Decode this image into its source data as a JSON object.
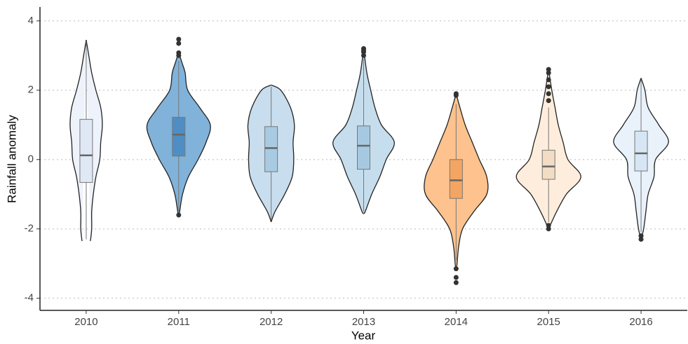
{
  "chart_data": {
    "type": "violin",
    "x_label": "Year",
    "y_label": "Rainfall anomaly",
    "categories": [
      "2010",
      "2011",
      "2012",
      "2013",
      "2014",
      "2015",
      "2016"
    ],
    "ylim": [
      -4.35,
      4.4
    ],
    "yticks": [
      -4,
      -2,
      0,
      2,
      4
    ],
    "grid": true,
    "groups": [
      {
        "color": "#eef3fb",
        "box_color": "#dfe8f4",
        "violin_y": [
          3.45,
          3,
          2.5,
          2,
          1.5,
          1,
          0.5,
          0,
          -0.5,
          -1,
          -1.5,
          -2,
          -2.35
        ],
        "violin_width": [
          0,
          0.08,
          0.17,
          0.3,
          0.45,
          0.5,
          0.45,
          0.42,
          0.3,
          0.22,
          0.17,
          0.17,
          0.13
        ],
        "q1": -0.66,
        "median": 0.12,
        "q3": 1.16,
        "whisker_low": -2.3,
        "whisker_high": 3.4,
        "outliers": []
      },
      {
        "color": "#80b2da",
        "box_color": "#4e8ec4",
        "violin_y": [
          3.1,
          2.8,
          2.5,
          2,
          1.5,
          1,
          0.5,
          0,
          -0.5,
          -1,
          -1.5,
          -1.6
        ],
        "violin_width": [
          0,
          0.1,
          0.2,
          0.28,
          0.65,
          0.98,
          0.85,
          0.6,
          0.3,
          0.12,
          0.03,
          0
        ],
        "q1": 0.1,
        "median": 0.72,
        "q3": 1.22,
        "whisker_low": -1.5,
        "whisker_high": 2.85,
        "outliers": [
          3.47,
          3.35,
          3.08,
          3.0,
          -1.6
        ]
      },
      {
        "color": "#c8ddee",
        "box_color": "#a9cbe2",
        "violin_y": [
          2.15,
          2,
          1.5,
          1,
          0.5,
          0,
          -0.5,
          -1,
          -1.5,
          -1.8
        ],
        "violin_width": [
          0,
          0.3,
          0.6,
          0.72,
          0.68,
          0.7,
          0.65,
          0.42,
          0.12,
          0
        ],
        "q1": -0.35,
        "median": 0.33,
        "q3": 0.95,
        "whisker_low": -1.75,
        "whisker_high": 2.1,
        "outliers": []
      },
      {
        "color": "#c6dded",
        "box_color": "#a6c9e1",
        "violin_y": [
          3.2,
          2.5,
          2,
          1.5,
          1,
          0.5,
          0,
          -0.5,
          -1,
          -1.5,
          -1.55
        ],
        "violin_width": [
          0,
          0.1,
          0.22,
          0.35,
          0.55,
          0.95,
          0.7,
          0.5,
          0.25,
          0.05,
          0
        ],
        "q1": -0.28,
        "median": 0.4,
        "q3": 0.97,
        "whisker_low": -1.5,
        "whisker_high": 2.9,
        "outliers": [
          3.2,
          3.15,
          3.1,
          3.0
        ]
      },
      {
        "color": "#fdc28d",
        "box_color": "#f4a561",
        "violin_y": [
          1.9,
          1.5,
          1,
          0.5,
          0,
          -0.5,
          -1,
          -1.5,
          -2,
          -2.5,
          -3,
          -3.2
        ],
        "violin_width": [
          0,
          0.12,
          0.28,
          0.5,
          0.72,
          0.95,
          0.95,
          0.55,
          0.2,
          0.08,
          0.03,
          0
        ],
        "q1": -1.12,
        "median": -0.6,
        "q3": 0.0,
        "whisker_low": -2.9,
        "whisker_high": 1.6,
        "outliers": [
          1.9,
          1.85,
          -3.15,
          -3.4,
          -3.55
        ]
      },
      {
        "color": "#feeddc",
        "box_color": "#f2dcc4",
        "violin_y": [
          2.6,
          2,
          1.5,
          1,
          0.5,
          0,
          -0.5,
          -1,
          -1.5,
          -2
        ],
        "violin_width": [
          0,
          0.1,
          0.2,
          0.3,
          0.45,
          0.6,
          1,
          0.55,
          0.25,
          0
        ],
        "q1": -0.57,
        "median": -0.2,
        "q3": 0.27,
        "whisker_low": -1.8,
        "whisker_high": 1.5,
        "outliers": [
          2.6,
          2.5,
          2.3,
          2.1,
          1.9,
          1.7,
          -1.9,
          -2.0
        ]
      },
      {
        "color": "#e9f2fa",
        "box_color": "#d7e6f4",
        "violin_y": [
          2.35,
          2,
          1.5,
          1,
          0.5,
          0,
          -0.5,
          -1,
          -1.5,
          -2,
          -2.3
        ],
        "violin_width": [
          0,
          0.12,
          0.22,
          0.55,
          0.85,
          0.45,
          0.4,
          0.22,
          0.15,
          0.08,
          0
        ],
        "q1": -0.33,
        "median": 0.18,
        "q3": 0.82,
        "whisker_low": -2.1,
        "whisker_high": 2.3,
        "outliers": [
          -2.2,
          -2.3
        ]
      }
    ]
  }
}
